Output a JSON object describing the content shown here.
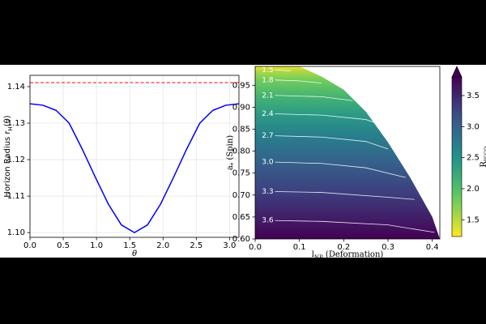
{
  "chart_data": [
    {
      "type": "line",
      "x_label": "θ",
      "y_label": {
        "main": "Horizon Radius  r",
        "sub": "H",
        "rest": "(θ)"
      },
      "x": [
        0,
        0.196,
        0.393,
        0.589,
        0.785,
        0.982,
        1.178,
        1.374,
        1.571,
        1.767,
        1.963,
        2.16,
        2.356,
        2.553,
        2.749,
        2.945,
        3.142
      ],
      "series": [
        {
          "color": "#0000ff",
          "values": [
            1.1353,
            1.1349,
            1.1335,
            1.13,
            1.1229,
            1.1152,
            1.1078,
            1.1021,
            1.1,
            1.1021,
            1.1078,
            1.1152,
            1.1229,
            1.13,
            1.1335,
            1.1349,
            1.1353
          ]
        }
      ],
      "hlines": [
        {
          "value": 1.1411,
          "color": "#ff0000",
          "style": "dashed"
        }
      ],
      "xlim": [
        0,
        3.1416
      ],
      "ylim": [
        1.0987,
        1.1431
      ],
      "xticks": [
        {
          "value": 0,
          "label": "0.0"
        },
        0.5,
        {
          "value": 1,
          "label": "1.0"
        },
        1.5,
        {
          "value": 2,
          "label": "2.0"
        },
        2.5,
        {
          "value": 3,
          "label": "3.0"
        }
      ],
      "yticks": [
        {
          "value": 1.1,
          "label": "1.10"
        },
        1.11,
        1.12,
        1.13,
        1.14
      ],
      "grid": true
    },
    {
      "type": "contour",
      "x_label": {
        "main": "l",
        "sub": "NP",
        "rest": " (Deformation)"
      },
      "y_label": {
        "main": "a",
        "sub": "*",
        "rest": " (Spin)"
      },
      "xlim": [
        0,
        0.417
      ],
      "ylim": [
        0.6,
        0.993
      ],
      "xticks": [
        {
          "value": 0,
          "label": "0.0"
        },
        0.1,
        0.2,
        0.3,
        0.4
      ],
      "yticks": [
        {
          "value": 0.6,
          "label": "0.60"
        },
        0.65,
        {
          "value": 0.7,
          "label": "0.70"
        },
        0.75,
        {
          "value": 0.8,
          "label": "0.80"
        },
        0.85,
        {
          "value": 0.9,
          "label": "0.90"
        },
        0.95
      ],
      "boundary": {
        "x": [
          0,
          0.1,
          0.15,
          0.2,
          0.25,
          0.3,
          0.35,
          0.4,
          0.417
        ],
        "y": [
          0.993,
          0.993,
          0.97,
          0.94,
          0.89,
          0.82,
          0.74,
          0.65,
          0.6
        ]
      },
      "contours": [
        {
          "level": 1.5,
          "x": [
            0.045,
            0.08
          ],
          "y": [
            0.985,
            0.983
          ]
        },
        {
          "level": 1.8,
          "x": [
            0.045,
            0.1,
            0.15
          ],
          "y": [
            0.962,
            0.96,
            0.955
          ]
        },
        {
          "level": 2.1,
          "x": [
            0.045,
            0.15,
            0.22
          ],
          "y": [
            0.927,
            0.924,
            0.915
          ]
        },
        {
          "level": 2.4,
          "x": [
            0.045,
            0.15,
            0.25,
            0.27
          ],
          "y": [
            0.885,
            0.882,
            0.872,
            0.865
          ]
        },
        {
          "level": 2.7,
          "x": [
            0.045,
            0.15,
            0.25,
            0.3
          ],
          "y": [
            0.835,
            0.832,
            0.822,
            0.805
          ]
        },
        {
          "level": {
            "value": 3,
            "label": "3.0"
          },
          "x": [
            0.045,
            0.15,
            0.25,
            0.34
          ],
          "y": [
            0.775,
            0.772,
            0.762,
            0.74
          ]
        },
        {
          "level": 3.3,
          "x": [
            0.045,
            0.15,
            0.3,
            0.36
          ],
          "y": [
            0.708,
            0.706,
            0.695,
            0.69
          ]
        },
        {
          "level": 3.6,
          "x": [
            0.045,
            0.15,
            0.3,
            0.405
          ],
          "y": [
            0.642,
            0.64,
            0.632,
            0.615
          ]
        }
      ],
      "colorbar": {
        "label": {
          "main": "R",
          "sub": "ISCO"
        },
        "lim": [
          1.23,
          3.8
        ],
        "ticks": [
          1.5,
          {
            "value": 2,
            "label": "2.0"
          },
          2.5,
          {
            "value": 3,
            "label": "3.0"
          },
          3.5
        ],
        "extend": "max",
        "colormap": "viridis_r"
      }
    }
  ]
}
